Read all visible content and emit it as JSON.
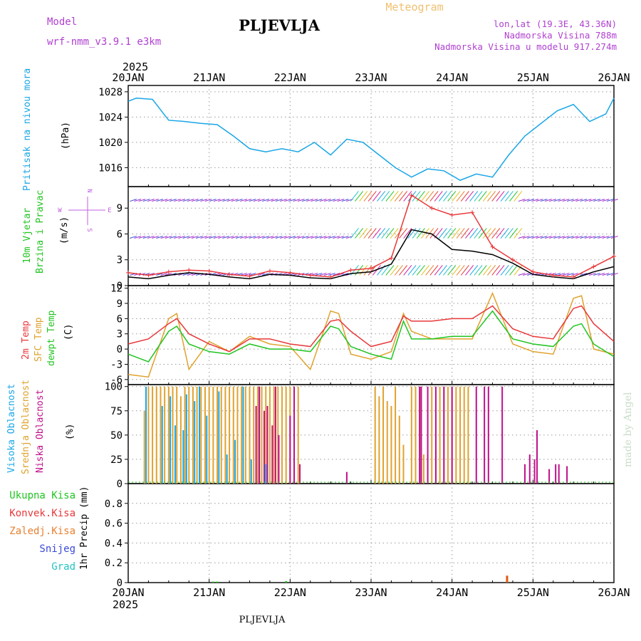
{
  "header": {
    "model_label": "Model",
    "model_name": "wrf-nmm_v3.9.1  e3km",
    "station": "PLJEVLJA",
    "product": "Meteogram",
    "lonlat": "lon,lat (19.3E, 43.36N)",
    "elevation": "Nadmorska Visina 788m",
    "model_elevation": "Nadmorska Visina u modelu 917.274m",
    "footer_station": "PLJEVLJA",
    "credit": "made by Angel"
  },
  "time_axis": {
    "year": "2025",
    "labels": [
      "20JAN",
      "21JAN",
      "22JAN",
      "23JAN",
      "24JAN",
      "25JAN",
      "26JAN"
    ]
  },
  "colors": {
    "pressure": "#1aa6e6",
    "temp2m": "#e8383a",
    "sfc_temp": "#e0a22e",
    "dewpt": "#22c422",
    "high_cloud": "#1aa6e6",
    "mid_cloud": "#e0a22e",
    "low_cloud": "#c0108a",
    "gust": "#e8383a",
    "wind_line": "#000000",
    "barb_blue": "#3a4ad8",
    "barb_purple": "#9a28c8"
  },
  "chart_data": [
    {
      "type": "line",
      "title": "Pritisak na nivou mora",
      "ylabel": "(hPa)",
      "ylim": [
        1013,
        1029
      ],
      "yticks": [
        1016,
        1020,
        1024,
        1028
      ],
      "x_days": [
        0,
        0.1,
        0.3,
        0.5,
        0.7,
        0.9,
        1.1,
        1.3,
        1.5,
        1.7,
        1.9,
        2.1,
        2.3,
        2.5,
        2.7,
        2.9,
        3.1,
        3.3,
        3.5,
        3.7,
        3.9,
        4.1,
        4.3,
        4.5,
        4.7,
        4.9,
        5.1,
        5.3,
        5.5,
        5.7,
        5.9,
        6
      ],
      "series": [
        {
          "name": "Pressure",
          "values": [
            1026.5,
            1027,
            1026.8,
            1023.5,
            1023.3,
            1023,
            1022.8,
            1021,
            1019,
            1018.5,
            1019,
            1018.5,
            1020,
            1018,
            1020.5,
            1020,
            1018,
            1016,
            1014.5,
            1015.8,
            1015.5,
            1014,
            1015,
            1014.5,
            1018,
            1021,
            1023,
            1025,
            1026,
            1023.3,
            1024.5,
            1027
          ]
        }
      ]
    },
    {
      "type": "line",
      "title": "10m Vjetar Brzina i Pravac",
      "ylabel": "(m/s)",
      "compass": {
        "n": "N",
        "w": "W",
        "e": "E",
        "s": "S"
      },
      "ylim": [
        0,
        11.5
      ],
      "yticks": [
        0,
        3,
        6,
        9
      ],
      "x_days": [
        0,
        0.25,
        0.5,
        0.75,
        1,
        1.25,
        1.5,
        1.75,
        2,
        2.25,
        2.5,
        2.75,
        3,
        3.25,
        3.5,
        3.75,
        4,
        4.25,
        4.5,
        4.75,
        5,
        5.25,
        5.5,
        5.75,
        6
      ],
      "series": [
        {
          "name": "Wind speed",
          "values": [
            1,
            0.8,
            1.2,
            1.5,
            1.3,
            1.0,
            0.8,
            1.3,
            1.2,
            0.9,
            0.8,
            1.4,
            1.6,
            2.5,
            6.5,
            6.0,
            4.2,
            4.0,
            3.6,
            2.6,
            1.3,
            1.0,
            0.8,
            1.6,
            2.2
          ]
        },
        {
          "name": "Gust",
          "values": [
            1.5,
            1.2,
            1.6,
            1.8,
            1.7,
            1.3,
            1.1,
            1.7,
            1.5,
            1.2,
            1.0,
            1.8,
            2.0,
            3.2,
            10.5,
            9.0,
            8.2,
            8.5,
            4.5,
            3.0,
            1.6,
            1.2,
            1.0,
            2.2,
            3.4
          ]
        }
      ]
    },
    {
      "type": "line",
      "title": "2m Temp / SFC Temp / dewpt Temp",
      "ylabel": "(C)",
      "ylim": [
        -7,
        12.5
      ],
      "yticks": [
        -6,
        -3,
        0,
        3,
        6,
        9,
        12
      ],
      "x_days": [
        0,
        0.25,
        0.5,
        0.6,
        0.75,
        1,
        1.25,
        1.5,
        1.75,
        2,
        2.25,
        2.5,
        2.6,
        2.75,
        3,
        3.25,
        3.4,
        3.5,
        3.75,
        4,
        4.25,
        4.5,
        4.75,
        5,
        5.25,
        5.5,
        5.6,
        5.75,
        6
      ],
      "series": [
        {
          "name": "2m Temp",
          "values": [
            1,
            2,
            5,
            6,
            3,
            1,
            -0.5,
            2,
            2,
            1,
            0.5,
            5.5,
            5.8,
            3.5,
            0.5,
            1.5,
            6.5,
            5.5,
            5.5,
            6,
            6,
            8.5,
            4,
            2.5,
            2,
            8,
            8.5,
            5,
            1.5
          ]
        },
        {
          "name": "SFC Temp",
          "values": [
            -5,
            -5.5,
            6,
            7,
            -4,
            1.5,
            -0.5,
            2.5,
            1,
            0.5,
            -4,
            7.5,
            7,
            -1,
            -2,
            -0.5,
            7,
            3.5,
            2,
            2,
            2,
            11,
            1,
            -0.5,
            -1,
            10,
            10.5,
            0,
            -1
          ]
        },
        {
          "name": "dewpt Temp",
          "values": [
            -1,
            -2.5,
            3.5,
            4.5,
            1,
            -0.5,
            -1,
            1,
            0,
            0,
            -0.5,
            4.5,
            4,
            0.5,
            -1,
            -2,
            5.5,
            2,
            2,
            2.5,
            2.5,
            7.5,
            2,
            1,
            0.5,
            4.5,
            5,
            1,
            -1.5
          ]
        }
      ]
    },
    {
      "type": "bar",
      "title": "Visoka Oblacnost / Srednja Oblacnost / Niska Oblacnost",
      "ylabel": "(%)",
      "ylim": [
        0,
        102
      ],
      "yticks": [
        0,
        25,
        50,
        75,
        100
      ],
      "series": [
        {
          "name": "Srednja Oblacnost",
          "x_days": [
            0.2,
            0.25,
            0.3,
            0.35,
            0.4,
            0.45,
            0.5,
            0.55,
            0.6,
            0.65,
            0.7,
            0.75,
            0.8,
            0.85,
            0.9,
            0.95,
            1.0,
            1.05,
            1.1,
            1.15,
            1.2,
            1.25,
            1.3,
            1.35,
            1.4,
            1.45,
            1.5,
            1.55,
            1.6,
            1.65,
            1.7,
            1.75,
            1.8,
            1.85,
            1.9,
            1.95,
            2.0,
            2.05,
            2.1,
            3.05,
            3.1,
            3.15,
            3.2,
            3.25,
            3.3,
            3.35,
            3.4,
            3.5,
            3.55,
            3.6,
            3.65,
            3.7,
            3.75,
            3.8,
            3.85,
            3.9,
            3.95,
            4.0,
            4.05,
            4.1,
            4.15,
            4.2
          ],
          "values": [
            75,
            100,
            100,
            100,
            100,
            100,
            100,
            100,
            100,
            90,
            100,
            100,
            100,
            100,
            100,
            100,
            100,
            100,
            100,
            100,
            100,
            100,
            100,
            100,
            100,
            100,
            100,
            100,
            100,
            100,
            100,
            100,
            100,
            100,
            100,
            100,
            100,
            100,
            100,
            100,
            90,
            100,
            85,
            80,
            100,
            70,
            40,
            100,
            100,
            100,
            30,
            30,
            100,
            35,
            100,
            100,
            100,
            100,
            100,
            100,
            100,
            100
          ]
        },
        {
          "name": "Visoka Oblacnost",
          "x_days": [
            0.22,
            0.42,
            0.52,
            0.58,
            0.68,
            0.72,
            0.82,
            0.88,
            0.97,
            1.12,
            1.22,
            1.32,
            1.42,
            1.52,
            1.62,
            1.7
          ],
          "values": [
            100,
            80,
            90,
            60,
            55,
            92,
            85,
            100,
            70,
            95,
            30,
            45,
            100,
            25,
            100,
            20
          ]
        },
        {
          "name": "Niska Oblacnost",
          "x_days": [
            1.58,
            1.62,
            1.68,
            1.72,
            1.78,
            1.82,
            1.86,
            2.0,
            2.05,
            2.12,
            2.7,
            3.6,
            3.62,
            3.7,
            3.8,
            3.9,
            4.0,
            4.3,
            4.4,
            4.45,
            4.62,
            4.9,
            4.96,
            5.02,
            5.05,
            5.2,
            5.28,
            5.32,
            5.42
          ],
          "values": [
            80,
            100,
            75,
            80,
            60,
            100,
            50,
            70,
            100,
            20,
            12,
            100,
            100,
            100,
            100,
            100,
            100,
            100,
            100,
            100,
            100,
            20,
            30,
            25,
            55,
            15,
            20,
            20,
            18
          ]
        }
      ]
    },
    {
      "type": "bar",
      "title": "Oborine",
      "legend": [
        "Ukupna Kisa",
        "Konvek.Kisa",
        "Zaledj.Kisa",
        "Snijeg",
        "Grad"
      ],
      "ylabel": "1hr Precip (mm)",
      "ylim": [
        0,
        1.0
      ],
      "yticks": [
        0,
        0.2,
        0.4,
        0.6,
        0.8
      ],
      "series": [
        {
          "name": "Ukupna Kisa",
          "x_days": [
            1.05,
            1.1,
            1.95
          ],
          "values": [
            0.01,
            0.01,
            0.015
          ]
        },
        {
          "name": "Zaledj.Kisa",
          "x_days": [
            4.68
          ],
          "values": [
            0.07
          ]
        }
      ]
    }
  ]
}
